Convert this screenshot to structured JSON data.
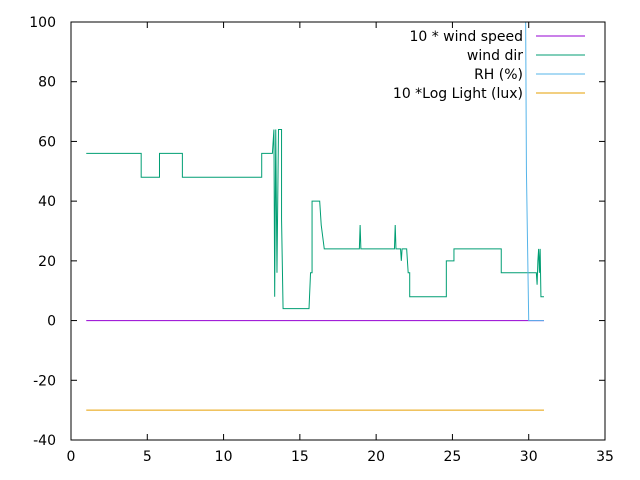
{
  "chart_data": {
    "type": "line",
    "title": "",
    "xlabel": "",
    "ylabel": "",
    "xlim": [
      0,
      35
    ],
    "ylim": [
      -40,
      100
    ],
    "x_ticks": [
      0,
      5,
      10,
      15,
      20,
      25,
      30,
      35
    ],
    "y_ticks": [
      -40,
      -20,
      0,
      20,
      40,
      60,
      80,
      100
    ],
    "grid": false,
    "legend_position": "top-right",
    "series": [
      {
        "name": "10 * wind speed",
        "color": "#9400d3",
        "points": [
          [
            1,
            0
          ],
          [
            31,
            0
          ]
        ]
      },
      {
        "name": "wind dir",
        "color": "#009e73",
        "points": [
          [
            1,
            56
          ],
          [
            4.6,
            56
          ],
          [
            4.6,
            48
          ],
          [
            5.8,
            48
          ],
          [
            5.8,
            56
          ],
          [
            7.3,
            56
          ],
          [
            7.3,
            48
          ],
          [
            12.5,
            48
          ],
          [
            12.5,
            56
          ],
          [
            13.2,
            56
          ],
          [
            13.3,
            64
          ],
          [
            13.35,
            8
          ],
          [
            13.42,
            64
          ],
          [
            13.5,
            16
          ],
          [
            13.6,
            64
          ],
          [
            13.8,
            64
          ],
          [
            13.8,
            34
          ],
          [
            13.9,
            4
          ],
          [
            15.6,
            4
          ],
          [
            15.7,
            16
          ],
          [
            15.8,
            16
          ],
          [
            15.8,
            40
          ],
          [
            16.3,
            40
          ],
          [
            16.4,
            32
          ],
          [
            16.6,
            24
          ],
          [
            18.9,
            24
          ],
          [
            18.95,
            32
          ],
          [
            19.0,
            24
          ],
          [
            21.2,
            24
          ],
          [
            21.25,
            32
          ],
          [
            21.3,
            24
          ],
          [
            21.6,
            24
          ],
          [
            21.65,
            20
          ],
          [
            21.7,
            24
          ],
          [
            22.0,
            24
          ],
          [
            22.1,
            16
          ],
          [
            22.2,
            16
          ],
          [
            22.2,
            8
          ],
          [
            24.6,
            8
          ],
          [
            24.6,
            20
          ],
          [
            25.1,
            20
          ],
          [
            25.1,
            24
          ],
          [
            28.2,
            24
          ],
          [
            28.2,
            16
          ],
          [
            30.5,
            16
          ],
          [
            30.55,
            12
          ],
          [
            30.6,
            20
          ],
          [
            30.65,
            24
          ],
          [
            30.7,
            16
          ],
          [
            30.75,
            24
          ],
          [
            30.8,
            8
          ],
          [
            31,
            8
          ]
        ]
      },
      {
        "name": "RH (%)",
        "color": "#56b4e9",
        "points": [
          [
            29.8,
            100
          ],
          [
            29.85,
            50
          ],
          [
            30.0,
            0
          ],
          [
            31,
            0
          ]
        ]
      },
      {
        "name": "10 *Log Light (lux)",
        "color": "#e69f00",
        "points": [
          [
            1,
            -30
          ],
          [
            31,
            -30
          ]
        ]
      }
    ]
  }
}
